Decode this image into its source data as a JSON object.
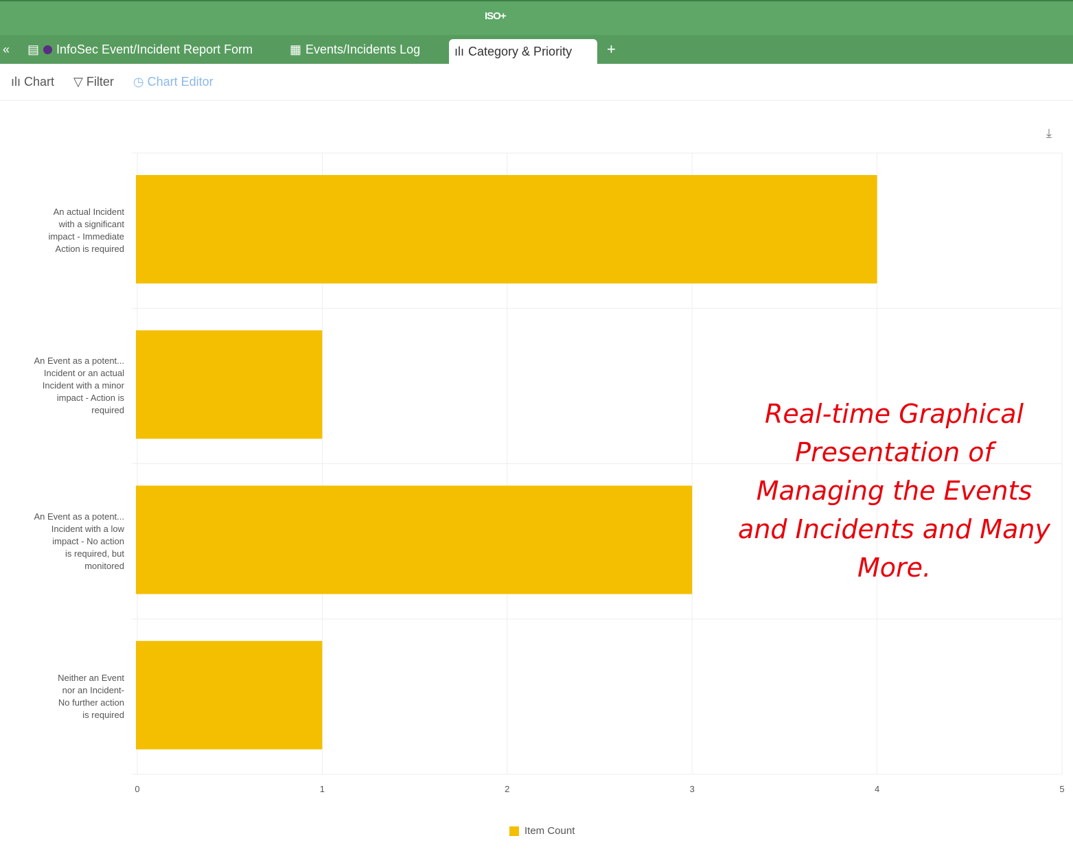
{
  "app": {
    "logo": "ISO+"
  },
  "tabs": [
    {
      "label": "InfoSec Event/Incident Report Form",
      "icon": "form-icon"
    },
    {
      "label": "Events/Incidents Log",
      "icon": "grid-icon"
    },
    {
      "label": "Category & Priority",
      "icon": "bar-chart-icon",
      "active": true
    }
  ],
  "add_tab": "+",
  "toolbar": {
    "chart": "Chart",
    "filter": "Filter",
    "editor": "Chart Editor"
  },
  "overlay_text": "Real-time Graphical Presentation of Managing the Events and Incidents and Many More.",
  "chart_data": {
    "type": "bar",
    "orientation": "horizontal",
    "categories": [
      "An actual Incident\nwith a significant\nimpact - Immediate\nAction is required",
      "An Event as a potent...\nIncident or an actual\nIncident with a minor\nimpact - Action is\nrequired",
      "An Event as a potent...\nIncident with a low\nimpact - No action\nis required, but\nmonitored",
      "Neither an Event\nnor an Incident-\nNo further action\nis required"
    ],
    "series": [
      {
        "name": "Item Count",
        "values": [
          4,
          1,
          3,
          1
        ],
        "color": "#f4bf00"
      }
    ],
    "xlim": [
      0,
      5
    ],
    "xticks": [
      "0",
      "1",
      "2",
      "3",
      "4",
      "5"
    ],
    "grid": true,
    "legend": "bottom"
  }
}
